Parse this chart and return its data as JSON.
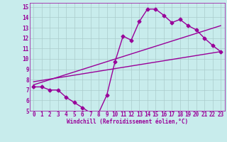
{
  "xlabel": "Windchill (Refroidissement éolien,°C)",
  "bg_color": "#c8ecec",
  "line_color": "#990099",
  "grid_color": "#aacccc",
  "xlim": [
    -0.5,
    23.5
  ],
  "ylim": [
    5,
    15.4
  ],
  "xticks": [
    0,
    1,
    2,
    3,
    4,
    5,
    6,
    7,
    8,
    9,
    10,
    11,
    12,
    13,
    14,
    15,
    16,
    17,
    18,
    19,
    20,
    21,
    22,
    23
  ],
  "yticks": [
    5,
    6,
    7,
    8,
    9,
    10,
    11,
    12,
    13,
    14,
    15
  ],
  "curve1_x": [
    0,
    1,
    2,
    3,
    4,
    5,
    6,
    7,
    8,
    9,
    10,
    11,
    12,
    13,
    14,
    15,
    16,
    17,
    18,
    19,
    20,
    21,
    22,
    23
  ],
  "curve1_y": [
    7.3,
    7.3,
    7.0,
    7.0,
    6.3,
    5.8,
    5.3,
    4.8,
    4.8,
    6.5,
    9.7,
    12.2,
    11.8,
    13.6,
    14.8,
    14.8,
    14.2,
    13.5,
    13.8,
    13.2,
    12.8,
    12.0,
    11.3,
    10.7
  ],
  "line2_x": [
    0,
    23
  ],
  "line2_y": [
    7.5,
    13.2
  ],
  "line3_x": [
    0,
    23
  ],
  "line3_y": [
    7.8,
    10.7
  ],
  "marker": "D",
  "markersize": 2.5,
  "linewidth": 1.0,
  "tick_fontsize": 5.5,
  "xlabel_fontsize": 5.5
}
